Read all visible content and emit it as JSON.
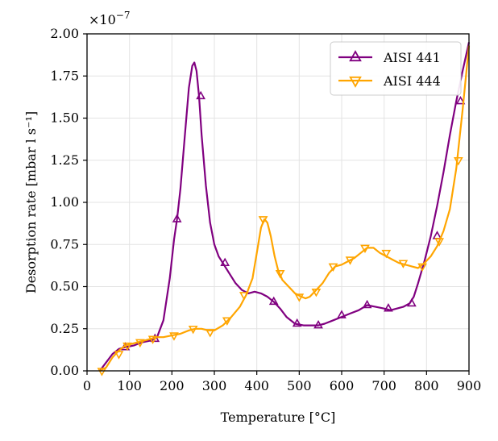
{
  "chart_data": {
    "type": "line",
    "title": "",
    "xlabel": "Temperature [°C]",
    "ylabel": "Desorption rate [mbar l s⁻¹]",
    "xlim": [
      0,
      900
    ],
    "ylim": [
      0,
      2.0
    ],
    "y_multiplier_base": "×10",
    "y_multiplier_exp": "−7",
    "xticks": [
      0,
      100,
      200,
      300,
      400,
      500,
      600,
      700,
      800,
      900
    ],
    "xtick_labels": [
      "0",
      "100",
      "200",
      "300",
      "400",
      "500",
      "600",
      "700",
      "800",
      "900"
    ],
    "yticks": [
      0,
      0.25,
      0.5,
      0.75,
      1.0,
      1.25,
      1.5,
      1.75,
      2.0
    ],
    "ytick_labels": [
      "0.00",
      "0.25",
      "0.50",
      "0.75",
      "1.00",
      "1.25",
      "1.50",
      "1.75",
      "2.00"
    ],
    "grid": true,
    "legend_position": "top-right",
    "series": [
      {
        "name": "AISI 441",
        "color": "#800080",
        "marker": "triangle-up",
        "x": [
          30,
          45,
          60,
          75,
          90,
          110,
          130,
          150,
          165,
          180,
          195,
          205,
          212,
          220,
          230,
          240,
          248,
          253,
          258,
          264,
          270,
          280,
          290,
          300,
          310,
          320,
          335,
          350,
          365,
          380,
          395,
          410,
          425,
          440,
          455,
          470,
          490,
          510,
          530,
          545,
          560,
          580,
          600,
          620,
          640,
          660,
          680,
          700,
          715,
          730,
          745,
          760,
          770,
          780,
          795,
          810,
          825,
          840,
          855,
          870,
          885,
          900
        ],
        "y": [
          0.0,
          0.05,
          0.1,
          0.13,
          0.14,
          0.15,
          0.17,
          0.18,
          0.2,
          0.3,
          0.55,
          0.78,
          0.9,
          1.08,
          1.38,
          1.68,
          1.81,
          1.83,
          1.78,
          1.63,
          1.4,
          1.1,
          0.88,
          0.75,
          0.68,
          0.64,
          0.58,
          0.52,
          0.48,
          0.46,
          0.47,
          0.46,
          0.44,
          0.41,
          0.37,
          0.32,
          0.28,
          0.27,
          0.27,
          0.27,
          0.28,
          0.3,
          0.32,
          0.34,
          0.36,
          0.39,
          0.38,
          0.37,
          0.36,
          0.37,
          0.38,
          0.4,
          0.44,
          0.52,
          0.65,
          0.8,
          0.98,
          1.18,
          1.4,
          1.6,
          1.78,
          1.95
        ],
        "marker_x": [
          90,
          160,
          212,
          268,
          325,
          440,
          495,
          545,
          600,
          660,
          710,
          765,
          825,
          880
        ],
        "marker_y": [
          0.14,
          0.19,
          0.9,
          1.63,
          0.64,
          0.41,
          0.28,
          0.27,
          0.33,
          0.39,
          0.37,
          0.4,
          0.8,
          1.6
        ]
      },
      {
        "name": "AISI 444",
        "color": "#FFA500",
        "marker": "triangle-down",
        "x": [
          30,
          45,
          60,
          75,
          90,
          105,
          120,
          135,
          150,
          165,
          180,
          200,
          220,
          240,
          255,
          270,
          285,
          300,
          320,
          340,
          360,
          375,
          390,
          400,
          410,
          418,
          425,
          433,
          442,
          450,
          460,
          475,
          490,
          505,
          515,
          525,
          540,
          555,
          570,
          585,
          600,
          615,
          630,
          645,
          660,
          675,
          690,
          705,
          720,
          735,
          750,
          765,
          780,
          795,
          810,
          825,
          840,
          855,
          870,
          885,
          900
        ],
        "y": [
          0.0,
          0.02,
          0.08,
          0.12,
          0.15,
          0.16,
          0.17,
          0.18,
          0.19,
          0.2,
          0.2,
          0.21,
          0.22,
          0.24,
          0.25,
          0.25,
          0.24,
          0.24,
          0.27,
          0.32,
          0.38,
          0.45,
          0.55,
          0.7,
          0.85,
          0.9,
          0.88,
          0.8,
          0.68,
          0.6,
          0.54,
          0.5,
          0.46,
          0.44,
          0.43,
          0.44,
          0.48,
          0.52,
          0.58,
          0.62,
          0.63,
          0.65,
          0.67,
          0.7,
          0.73,
          0.73,
          0.7,
          0.68,
          0.66,
          0.64,
          0.63,
          0.62,
          0.61,
          0.64,
          0.68,
          0.74,
          0.83,
          0.96,
          1.2,
          1.55,
          1.93
        ],
        "marker_x": [
          35,
          75,
          95,
          125,
          155,
          205,
          250,
          290,
          330,
          370,
          415,
          455,
          500,
          540,
          580,
          620,
          655,
          705,
          745,
          790,
          830,
          875
        ],
        "marker_y": [
          0.0,
          0.1,
          0.15,
          0.17,
          0.19,
          0.21,
          0.25,
          0.23,
          0.3,
          0.45,
          0.9,
          0.58,
          0.44,
          0.47,
          0.62,
          0.66,
          0.73,
          0.7,
          0.64,
          0.62,
          0.77,
          1.25
        ]
      }
    ]
  }
}
